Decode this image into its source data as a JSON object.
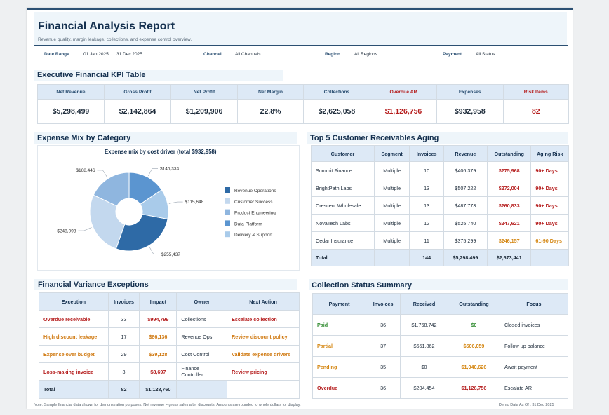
{
  "report": {
    "title": "Financial Analysis Report",
    "subtitle": "Revenue quality, margin leakage, collections, and expense control overview."
  },
  "filters": {
    "date_label": "Date Range",
    "date_start": "01 Jan 2025",
    "date_end": "31 Dec 2025",
    "channel_label": "Channel",
    "channel_value": "All Channels",
    "region_label": "Region",
    "region_value": "All Regions",
    "payment_label": "Payment",
    "payment_value": "All Status"
  },
  "kpi": {
    "title": "Executive Financial KPI Table",
    "headers": [
      "Net Revenue",
      "Gross Profit",
      "Net Profit",
      "Net Margin",
      "Collections",
      "Overdue AR",
      "Expenses",
      "Risk Items"
    ],
    "values": [
      "$5,298,499",
      "$2,142,864",
      "$1,209,906",
      "22.8%",
      "$2,625,058",
      "$1,126,756",
      "$932,958",
      "82"
    ]
  },
  "expense_mix": {
    "title": "Expense Mix by Category",
    "chart_title": "Expense mix by cost driver (total $932,958)"
  },
  "chart_data": {
    "type": "pie",
    "donut": true,
    "title": "Expense mix by cost driver (total $932,958)",
    "categories": [
      "Revenue Operations",
      "Customer Success",
      "Product Engineering",
      "Data Platform",
      "Delivery & Support"
    ],
    "values": [
      255437,
      248093,
      168446,
      145333,
      115648
    ],
    "labels": [
      "$255,437",
      "$248,093",
      "$168,446",
      "$145,333",
      "$115,648"
    ],
    "colors": [
      "#2e6aa6",
      "#c3d8ee",
      "#8fb6df",
      "#5b95d0",
      "#a9cbea"
    ],
    "legend_position": "right"
  },
  "aging": {
    "title": "Top 5 Customer Receivables Aging",
    "headers": [
      "Customer",
      "Segment",
      "Invoices",
      "Revenue",
      "Outstanding",
      "Aging Risk"
    ],
    "rows": [
      {
        "customer": "Summit Finance",
        "segment": "Multiple",
        "invoices": "10",
        "revenue": "$406,379",
        "outstanding": "$275,968",
        "risk": "90+ Days"
      },
      {
        "customer": "BrightPath Labs",
        "segment": "Multiple",
        "invoices": "13",
        "revenue": "$507,222",
        "outstanding": "$272,004",
        "risk": "90+ Days"
      },
      {
        "customer": "Crescent Wholesale",
        "segment": "Multiple",
        "invoices": "13",
        "revenue": "$487,773",
        "outstanding": "$260,833",
        "risk": "90+ Days"
      },
      {
        "customer": "NovaTech Labs",
        "segment": "Multiple",
        "invoices": "12",
        "revenue": "$525,740",
        "outstanding": "$247,621",
        "risk": "90+ Days"
      },
      {
        "customer": "Cedar Insurance",
        "segment": "Multiple",
        "invoices": "11",
        "revenue": "$375,299",
        "outstanding": "$246,157",
        "risk": "61-90 Days"
      }
    ],
    "total": {
      "label": "Total",
      "invoices": "144",
      "revenue": "$5,298,499",
      "outstanding": "$2,673,441"
    }
  },
  "variance": {
    "title": "Financial Variance Exceptions",
    "headers": [
      "Exception",
      "Invoices",
      "Impact",
      "Owner",
      "Next Action"
    ],
    "rows": [
      {
        "exception": "Overdue receivable",
        "invoices": "33",
        "impact": "$994,799",
        "owner": "Collections",
        "action": "Escalate collection"
      },
      {
        "exception": "High discount leakage",
        "invoices": "17",
        "impact": "$86,136",
        "owner": "Revenue Ops",
        "action": "Review discount policy"
      },
      {
        "exception": "Expense over budget",
        "invoices": "29",
        "impact": "$39,128",
        "owner": "Cost Control",
        "action": "Validate expense drivers"
      },
      {
        "exception": "Loss-making invoice",
        "invoices": "3",
        "impact": "$8,697",
        "owner": "Finance Controller",
        "action": "Review pricing"
      }
    ],
    "total": {
      "label": "Total",
      "invoices": "82",
      "impact": "$1,128,760"
    }
  },
  "collection": {
    "title": "Collection Status Summary",
    "headers": [
      "Payment",
      "Invoices",
      "Received",
      "Outstanding",
      "Focus"
    ],
    "rows": [
      {
        "payment": "Paid",
        "invoices": "36",
        "received": "$1,768,742",
        "outstanding": "$0",
        "focus": "Closed invoices"
      },
      {
        "payment": "Partial",
        "invoices": "37",
        "received": "$651,862",
        "outstanding": "$506,059",
        "focus": "Follow up balance"
      },
      {
        "payment": "Pending",
        "invoices": "35",
        "received": "$0",
        "outstanding": "$1,040,626",
        "focus": "Await payment"
      },
      {
        "payment": "Overdue",
        "invoices": "36",
        "received": "$204,454",
        "outstanding": "$1,126,756",
        "focus": "Escalate AR"
      }
    ]
  },
  "footer": {
    "note": "Note: Sample financial data shown for demonstration purposes. Net revenue = gross sales after discounts. Amounts are rounded to whole dollars for display.",
    "asof": "Demo Data As Of : 31 Dec 2025"
  }
}
